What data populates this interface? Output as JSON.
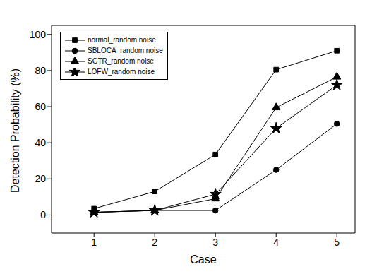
{
  "chart_data": {
    "type": "line",
    "x_label": "Case",
    "y_label": "Detection Probability (%)",
    "x": [
      1,
      2,
      3,
      4,
      5
    ],
    "xlim": [
      0.3,
      5.3
    ],
    "xticks": [
      1,
      2,
      3,
      4,
      5
    ],
    "ylim": [
      -10,
      105
    ],
    "yticks": [
      0,
      20,
      40,
      60,
      80,
      100
    ],
    "grid": false,
    "legend": "upper left",
    "series": [
      {
        "name": "normal_random noise",
        "color": "#000000",
        "marker": "square",
        "values": [
          3.5,
          13,
          33.5,
          80.5,
          91
        ]
      },
      {
        "name": "SBLOCA_random noise",
        "color": "#000000",
        "marker": "circle",
        "values": [
          1.5,
          2.5,
          2.5,
          25,
          50.5
        ]
      },
      {
        "name": "SGTR_random noise",
        "color": "#000000",
        "marker": "triangle",
        "values": [
          1.5,
          2.5,
          9,
          59.5,
          76.5
        ]
      },
      {
        "name": "LOFW_random noise",
        "color": "#000000",
        "marker": "star",
        "values": [
          1.5,
          2.5,
          11.5,
          48,
          72
        ]
      }
    ]
  }
}
